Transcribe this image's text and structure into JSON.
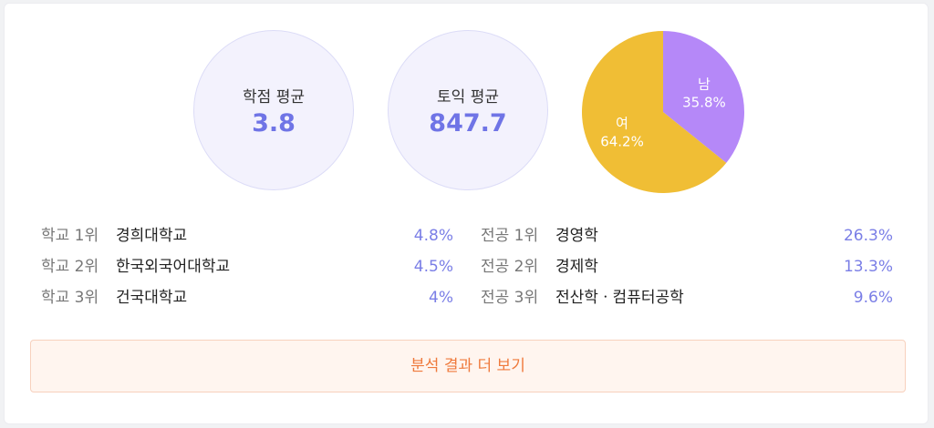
{
  "stats": {
    "gpa": {
      "label": "학점 평균",
      "value": "3.8"
    },
    "toeic": {
      "label": "토익 평균",
      "value": "847.7"
    }
  },
  "gender_chart": {
    "type": "pie",
    "slices": [
      {
        "label": "남",
        "percent_label": "35.8%",
        "value": 35.8,
        "color": "#b588f8"
      },
      {
        "label": "여",
        "percent_label": "64.2%",
        "value": 64.2,
        "color": "#f0be35"
      }
    ]
  },
  "chart_data": {
    "type": "pie",
    "categories": [
      "남",
      "여"
    ],
    "values": [
      35.8,
      64.2
    ]
  },
  "school_ranks": [
    {
      "label": "학교 1위",
      "name": "경희대학교",
      "percent": "4.8%"
    },
    {
      "label": "학교 2위",
      "name": "한국외국어대학교",
      "percent": "4.5%"
    },
    {
      "label": "학교 3위",
      "name": "건국대학교",
      "percent": "4%"
    }
  ],
  "major_ranks": [
    {
      "label": "전공 1위",
      "name": "경영학",
      "percent": "26.3%"
    },
    {
      "label": "전공 2위",
      "name": "경제학",
      "percent": "13.3%"
    },
    {
      "label": "전공 3위",
      "name": "전산학ㆍ컴퓨터공학",
      "percent": "9.6%"
    }
  ],
  "more_button": {
    "label": "분석 결과 더 보기"
  },
  "colors": {
    "accent": "#6f74e6",
    "button_text": "#ef7a3c"
  }
}
